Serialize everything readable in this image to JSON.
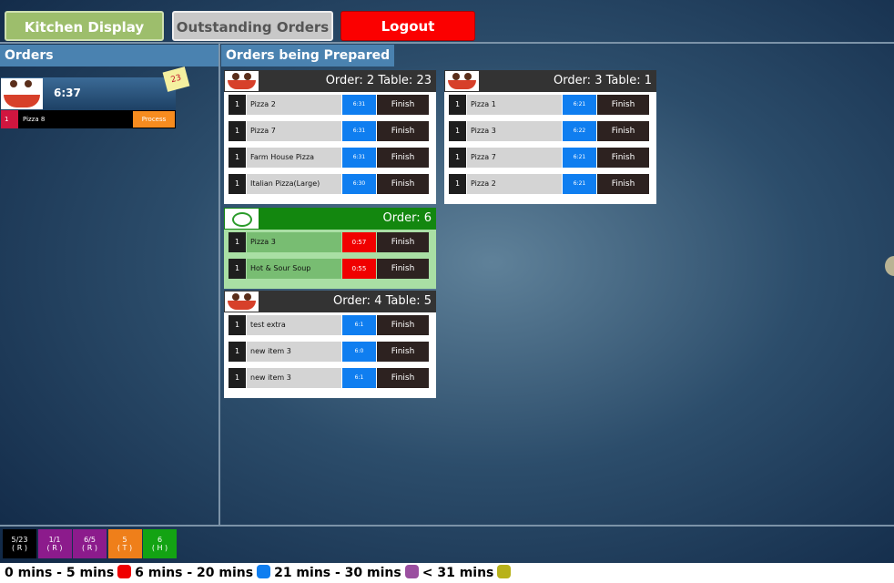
{
  "nav": [
    "Kitchen Display",
    "Outstanding Orders",
    "Logout"
  ],
  "orders_panel": {
    "title": "Orders",
    "order": {
      "time": "6:37",
      "badge": "23",
      "items": [
        {
          "qty": "1",
          "name": "Pizza 8",
          "action": "Process"
        }
      ]
    }
  },
  "prepared_panel": {
    "title": "Orders being Prepared",
    "cards": [
      {
        "header": "Order: 2 Table: 23",
        "items": [
          {
            "qty": "1",
            "name": "Pizza 2",
            "time": "6:31",
            "action": "Finish"
          },
          {
            "qty": "1",
            "name": "Pizza 7",
            "time": "6:31",
            "action": "Finish"
          },
          {
            "qty": "1",
            "name": "Farm House Pizza",
            "time": "6:31",
            "action": "Finish"
          },
          {
            "qty": "1",
            "name": "Italian Pizza(Large)",
            "time": "6:30",
            "action": "Finish"
          }
        ]
      },
      {
        "header": "Order: 3 Table: 1",
        "items": [
          {
            "qty": "1",
            "name": "Pizza 1",
            "time": "6:21",
            "action": "Finish"
          },
          {
            "qty": "1",
            "name": "Pizza 3",
            "time": "6:22",
            "action": "Finish"
          },
          {
            "qty": "1",
            "name": "Pizza 7",
            "time": "6:21",
            "action": "Finish"
          },
          {
            "qty": "1",
            "name": "Pizza 2",
            "time": "6:21",
            "action": "Finish"
          }
        ]
      },
      {
        "header": "Order: 6",
        "items": [
          {
            "qty": "1",
            "name": "Pizza 3",
            "time": "0:57",
            "action": "Finish"
          },
          {
            "qty": "1",
            "name": "Hot & Sour Soup",
            "time": "0:55",
            "action": "Finish"
          }
        ]
      },
      {
        "header": "Order: 4 Table: 5",
        "items": [
          {
            "qty": "1",
            "name": "test extra",
            "time": "6:1",
            "action": "Finish"
          },
          {
            "qty": "1",
            "name": "new item 3",
            "time": "6:0",
            "action": "Finish"
          },
          {
            "qty": "1",
            "name": "new item 3",
            "time": "6:1",
            "action": "Finish"
          }
        ]
      }
    ]
  },
  "queue": [
    {
      "label": "5/23",
      "sub": "( R )"
    },
    {
      "label": "1/1",
      "sub": "( R )"
    },
    {
      "label": "6/5",
      "sub": "( R )"
    },
    {
      "label": "5",
      "sub": "( T )"
    },
    {
      "label": "6",
      "sub": "( H )"
    }
  ],
  "legend": [
    "0 mins - 5 mins",
    "6 mins - 20 mins",
    "21 mins - 30 mins",
    "< 31 mins"
  ]
}
